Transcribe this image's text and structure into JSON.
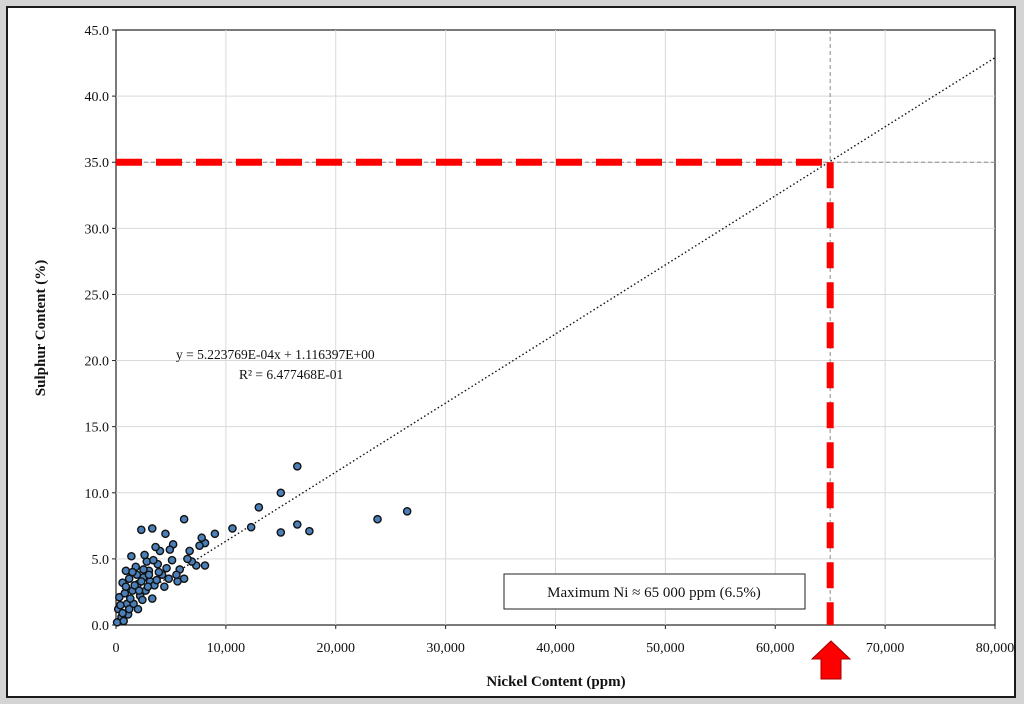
{
  "chart_data": {
    "type": "scatter",
    "xlabel": "Nickel Content (ppm)",
    "ylabel": "Sulphur Content (%)",
    "xlim": [
      0,
      80000
    ],
    "ylim": [
      0,
      45
    ],
    "x_ticks": [
      0,
      10000,
      20000,
      30000,
      40000,
      50000,
      60000,
      70000,
      80000
    ],
    "x_tick_labels": [
      "0",
      "10,000",
      "20,000",
      "30,000",
      "40,000",
      "50,000",
      "60,000",
      "70,000",
      "80,000"
    ],
    "y_ticks": [
      0,
      5,
      10,
      15,
      20,
      25,
      30,
      35,
      40,
      45
    ],
    "y_tick_labels": [
      "0.0",
      "5.0",
      "10.0",
      "15.0",
      "20.0",
      "25.0",
      "30.0",
      "35.0",
      "40.0",
      "45.0"
    ],
    "grid": true,
    "trendline": {
      "type": "linear",
      "slope": 0.0005223769,
      "intercept": 1.116397,
      "equation_text": "y = 5.223769E-04x + 1.116397E+00",
      "r2_text": "R² = 6.477468E-01"
    },
    "reference_lines": {
      "x": 65000,
      "y": 35,
      "color": "#ff0000"
    },
    "annotation": "Maximum Ni ≈ 65 000 ppm (6.5%)",
    "marker_color": "#4a7fb8",
    "marker_edge_color": "#111111",
    "series": [
      {
        "points": [
          [
            26500,
            8.6
          ],
          [
            23800,
            8.0
          ],
          [
            16500,
            12.0
          ],
          [
            16500,
            7.6
          ],
          [
            17600,
            7.1
          ],
          [
            15000,
            10.0
          ],
          [
            15000,
            7.0
          ],
          [
            13000,
            8.9
          ],
          [
            12300,
            7.4
          ],
          [
            10600,
            7.3
          ],
          [
            9000,
            6.9
          ],
          [
            8100,
            6.2
          ],
          [
            7800,
            6.6
          ],
          [
            6200,
            8.0
          ],
          [
            7300,
            4.5
          ],
          [
            8100,
            4.5
          ],
          [
            6700,
            5.6
          ],
          [
            4500,
            6.9
          ],
          [
            3300,
            7.3
          ],
          [
            2300,
            7.2
          ],
          [
            5200,
            6.1
          ],
          [
            4800,
            3.5
          ],
          [
            6200,
            3.5
          ],
          [
            5600,
            3.3
          ],
          [
            4000,
            5.6
          ],
          [
            3600,
            5.9
          ],
          [
            2800,
            4.8
          ],
          [
            1400,
            5.2
          ],
          [
            900,
            4.1
          ],
          [
            600,
            3.2
          ],
          [
            300,
            2.1
          ],
          [
            200,
            1.2
          ],
          [
            100,
            0.2
          ],
          [
            500,
            0.6
          ],
          [
            1000,
            1.6
          ],
          [
            1500,
            2.6
          ],
          [
            2000,
            3.1
          ],
          [
            2500,
            3.6
          ],
          [
            3000,
            4.1
          ],
          [
            1800,
            4.4
          ],
          [
            2200,
            2.2
          ],
          [
            2700,
            2.6
          ],
          [
            3100,
            3.3
          ],
          [
            3500,
            3.0
          ],
          [
            4200,
            3.8
          ],
          [
            3800,
            4.6
          ],
          [
            2600,
            5.3
          ],
          [
            1200,
            3.5
          ],
          [
            800,
            2.4
          ],
          [
            1600,
            1.6
          ],
          [
            2400,
            1.9
          ],
          [
            1100,
            0.8
          ],
          [
            700,
            0.3
          ],
          [
            1900,
            3.8
          ],
          [
            3300,
            2.0
          ],
          [
            4600,
            4.3
          ],
          [
            5100,
            4.9
          ],
          [
            5800,
            4.2
          ],
          [
            6900,
            4.8
          ],
          [
            7600,
            6.0
          ],
          [
            2000,
            1.2
          ],
          [
            1300,
            2.0
          ],
          [
            2900,
            2.9
          ],
          [
            3700,
            3.4
          ],
          [
            4400,
            2.9
          ],
          [
            5500,
            3.8
          ],
          [
            6500,
            5.0
          ],
          [
            400,
            1.5
          ],
          [
            900,
            2.9
          ],
          [
            1700,
            3.0
          ],
          [
            2100,
            2.6
          ],
          [
            3400,
            4.9
          ],
          [
            4900,
            5.7
          ],
          [
            2500,
            4.2
          ],
          [
            1500,
            4.0
          ],
          [
            3900,
            4.0
          ],
          [
            600,
            0.9
          ],
          [
            1200,
            1.2
          ],
          [
            2300,
            3.3
          ],
          [
            3000,
            3.8
          ]
        ]
      }
    ]
  }
}
